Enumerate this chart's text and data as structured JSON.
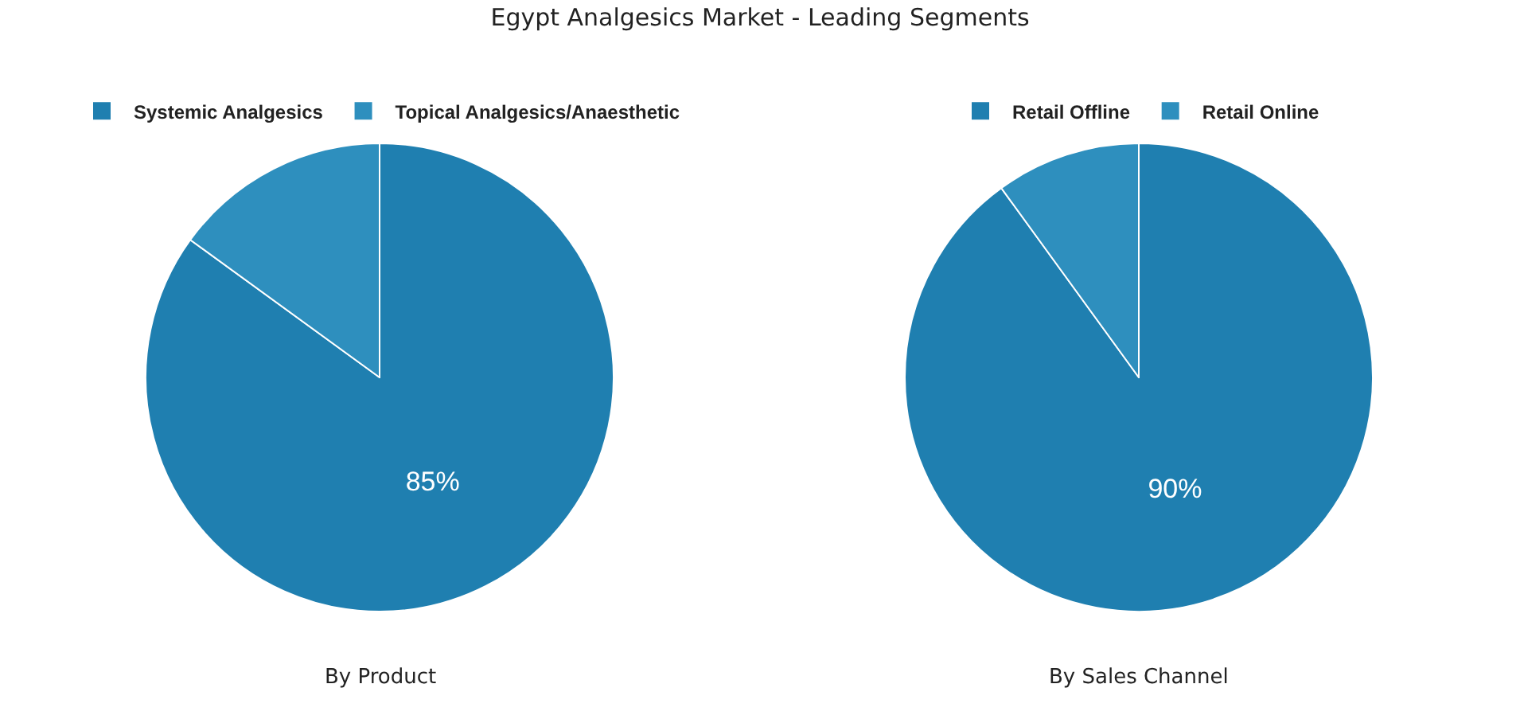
{
  "chart_data": [
    {
      "type": "pie",
      "title": "Egypt Analgesics Market - Leading Segments",
      "xlabel": "By Product",
      "categories": [
        "Systemic Analgesics",
        "Topical Analgesics/Anaesthetic"
      ],
      "values": [
        85,
        15
      ],
      "colors": [
        "#1f7fb0",
        "#2e8fbe"
      ],
      "value_labels": [
        "85%",
        null
      ],
      "legend": "top"
    },
    {
      "type": "pie",
      "xlabel": "By Sales Channel",
      "categories": [
        "Retail Offline",
        "Retail Online"
      ],
      "values": [
        90,
        10
      ],
      "colors": [
        "#1f7fb0",
        "#2e8fbe"
      ],
      "value_labels": [
        "90%",
        null
      ],
      "legend": "top"
    }
  ]
}
